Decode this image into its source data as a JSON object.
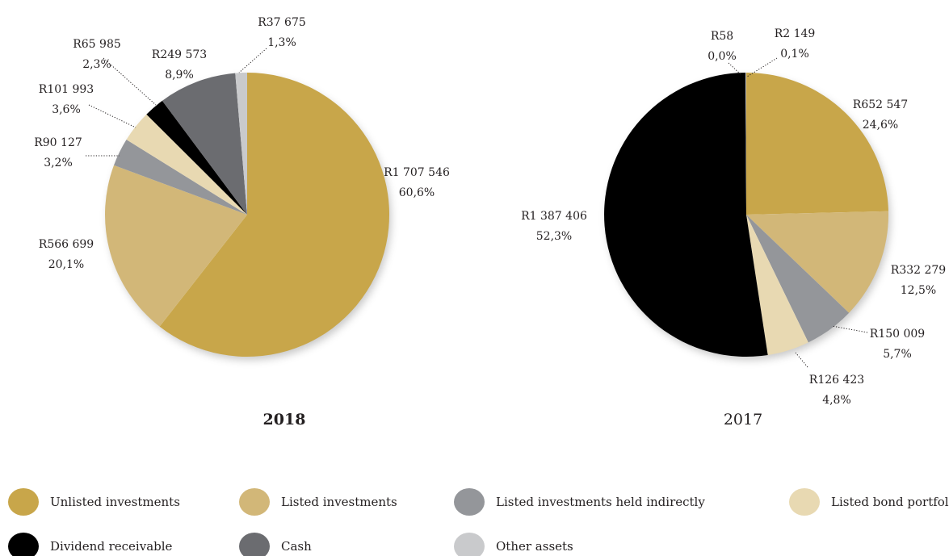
{
  "colors": {
    "unlisted": "#c8a64a",
    "listed": "#d2b778",
    "indirect": "#94969a",
    "bond": "#e8d9b2",
    "dividend": "#000000",
    "cash": "#6b6c70",
    "other": "#c9cacc"
  },
  "legend": [
    {
      "key": "unlisted",
      "label": "Unlisted investments"
    },
    {
      "key": "listed",
      "label": "Listed investments"
    },
    {
      "key": "indirect",
      "label": "Listed investments held indirectly"
    },
    {
      "key": "bond",
      "label": "Listed bond portfolio"
    },
    {
      "key": "dividend",
      "label": "Dividend receivable"
    },
    {
      "key": "cash",
      "label": "Cash"
    },
    {
      "key": "other",
      "label": "Other assets"
    }
  ],
  "chart_data": [
    {
      "type": "pie",
      "title": "2018",
      "title_bold": true,
      "slices": [
        {
          "key": "unlisted",
          "value": 1707546,
          "amount": "R1 707 546",
          "pct": "60,6%"
        },
        {
          "key": "listed",
          "value": 566699,
          "amount": "R566 699",
          "pct": "20,1%"
        },
        {
          "key": "indirect",
          "value": 90127,
          "amount": "R90 127",
          "pct": "3,2%"
        },
        {
          "key": "bond",
          "value": 101993,
          "amount": "R101 993",
          "pct": "3,6%"
        },
        {
          "key": "dividend",
          "value": 65985,
          "amount": "R65 985",
          "pct": "2,3%"
        },
        {
          "key": "cash",
          "value": 249573,
          "amount": "R249 573",
          "pct": "8,9%"
        },
        {
          "key": "other",
          "value": 37675,
          "amount": "R37 675",
          "pct": "1,3%"
        }
      ]
    },
    {
      "type": "pie",
      "title": "2017",
      "title_bold": false,
      "slices": [
        {
          "key": "unlisted",
          "value": 652547,
          "amount": "R652 547",
          "pct": "24,6%"
        },
        {
          "key": "listed",
          "value": 332279,
          "amount": "R332 279",
          "pct": "12,5%"
        },
        {
          "key": "indirect",
          "value": 150009,
          "amount": "R150 009",
          "pct": "5,7%"
        },
        {
          "key": "bond",
          "value": 126423,
          "amount": "R126 423",
          "pct": "4,8%"
        },
        {
          "key": "dividend",
          "value": 1387406,
          "amount": "R1 387 406",
          "pct": "52,3%"
        },
        {
          "key": "cash",
          "value": 58,
          "amount": "R58",
          "pct": "0,0%"
        },
        {
          "key": "other",
          "value": 2149,
          "amount": "R2 149",
          "pct": "0,1%"
        }
      ]
    }
  ]
}
